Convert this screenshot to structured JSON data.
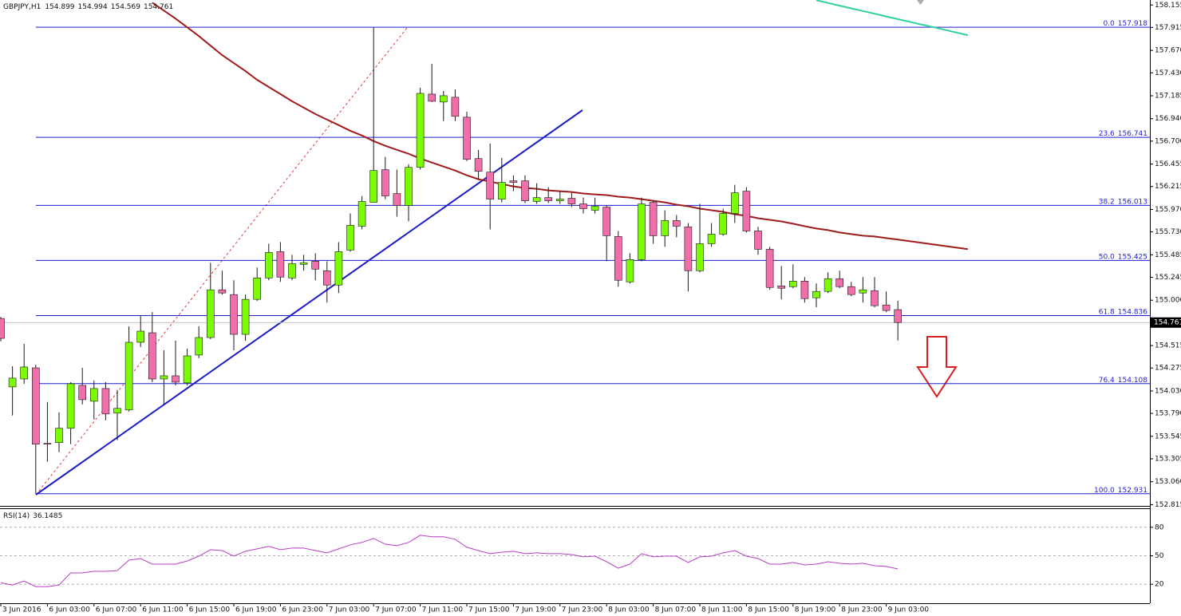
{
  "chart_data": [
    {
      "type": "candlestick",
      "title": "GBPJPY,H1",
      "categories": [
        "3 Jun 2016",
        null,
        null,
        null,
        "6 Jun 03:00",
        null,
        null,
        null,
        "6 Jun 07:00",
        null,
        null,
        null,
        "6 Jun 11:00",
        null,
        null,
        null,
        "6 Jun 15:00",
        null,
        null,
        null,
        "6 Jun 19:00",
        null,
        null,
        null,
        "6 Jun 23:00",
        null,
        null,
        null,
        "7 Jun 03:00",
        null,
        null,
        null,
        "7 Jun 07:00",
        null,
        null,
        null,
        "7 Jun 11:00",
        null,
        null,
        null,
        "7 Jun 15:00",
        null,
        null,
        null,
        "7 Jun 19:00",
        null,
        null,
        null,
        "7 Jun 23:00",
        null,
        null,
        null,
        "8 Jun 03:00",
        null,
        null,
        null,
        "8 Jun 07:00",
        null,
        null,
        null,
        "8 Jun 11:00",
        null,
        null,
        null,
        "8 Jun 15:00",
        null,
        null,
        null,
        "8 Jun 19:00",
        null,
        null,
        null,
        "8 Jun 23:00",
        null,
        null,
        null,
        "9 Jun 03:00",
        null,
        null,
        null,
        null,
        null,
        null,
        null
      ],
      "open": [
        154.805,
        154.073,
        154.158,
        154.277,
        153.47,
        153.478,
        153.631,
        154.09,
        153.92,
        154.056,
        153.793,
        153.827,
        154.55,
        154.652,
        154.158,
        154.192,
        154.116,
        154.414,
        154.601,
        155.111,
        155.06,
        154.635,
        155.009,
        155.238,
        155.519,
        155.238,
        155.383,
        155.417,
        155.315,
        155.162,
        155.536,
        155.791,
        156.046,
        156.395,
        156.14,
        156.012,
        156.42,
        157.203,
        157.118,
        157.169,
        156.956,
        156.514,
        156.369,
        156.08,
        156.276,
        156.276,
        156.055,
        156.097,
        156.063,
        156.089,
        156.029,
        155.961,
        155.995,
        155.681,
        155.196,
        155.434,
        156.046,
        155.689,
        155.851,
        155.783,
        155.315,
        155.604,
        155.706,
        155.927,
        156.165,
        155.74,
        155.544,
        155.153,
        155.145,
        155.204,
        155.026,
        155.094,
        155.23,
        155.145,
        155.077,
        155.102,
        154.949,
        154.899,
        null,
        null,
        null,
        null,
        null,
        null
      ],
      "high": [
        154.822,
        154.294,
        154.533,
        154.311,
        153.912,
        153.801,
        154.124,
        154.277,
        154.141,
        154.124,
        154.039,
        154.72,
        154.839,
        154.873,
        154.465,
        154.567,
        154.482,
        154.72,
        155.4,
        155.315,
        155.213,
        155.06,
        155.349,
        155.604,
        155.621,
        155.485,
        155.485,
        155.502,
        155.417,
        155.621,
        155.927,
        156.114,
        157.918,
        156.531,
        156.395,
        156.454,
        157.271,
        157.526,
        157.237,
        157.254,
        157.016,
        156.607,
        156.675,
        156.522,
        156.335,
        156.335,
        156.25,
        156.208,
        156.165,
        156.148,
        156.097,
        156.097,
        156.012,
        155.74,
        155.502,
        156.097,
        156.063,
        155.961,
        155.91,
        155.825,
        156.029,
        155.825,
        155.978,
        156.233,
        156.208,
        155.783,
        155.57,
        155.366,
        155.383,
        155.247,
        155.179,
        155.298,
        155.315,
        155.196,
        155.247,
        155.247,
        155.094,
        154.994,
        null,
        null,
        null,
        null,
        null,
        null
      ],
      "low": [
        154.56,
        153.767,
        154.107,
        152.931,
        153.274,
        153.376,
        153.461,
        153.886,
        153.725,
        153.716,
        153.504,
        153.81,
        154.499,
        154.124,
        153.886,
        154.09,
        154.09,
        154.38,
        154.584,
        155.06,
        154.465,
        154.567,
        154.992,
        155.213,
        155.196,
        155.213,
        155.315,
        155.213,
        154.975,
        155.077,
        155.519,
        155.757,
        156.046,
        156.08,
        155.893,
        155.842,
        156.395,
        157.118,
        156.914,
        156.914,
        156.488,
        156.293,
        155.757,
        156.046,
        156.165,
        156.038,
        156.029,
        156.038,
        156.029,
        155.995,
        155.927,
        155.927,
        155.417,
        155.145,
        155.179,
        155.417,
        155.604,
        155.57,
        155.672,
        155.094,
        155.298,
        155.57,
        155.689,
        155.825,
        155.723,
        155.485,
        155.111,
        155.009,
        155.128,
        154.975,
        154.924,
        155.077,
        155.128,
        155.043,
        154.975,
        154.924,
        154.873,
        154.569,
        null,
        null,
        null,
        null,
        null,
        null
      ],
      "close": [
        154.592,
        154.167,
        154.286,
        153.461,
        153.461,
        153.631,
        154.107,
        153.937,
        154.056,
        153.784,
        153.844,
        154.55,
        154.669,
        154.158,
        154.192,
        154.124,
        154.405,
        154.601,
        155.111,
        155.077,
        154.635,
        155.009,
        155.238,
        155.51,
        155.247,
        155.391,
        155.4,
        155.332,
        155.162,
        155.519,
        155.8,
        156.055,
        156.386,
        156.114,
        156.012,
        156.42,
        157.211,
        157.126,
        157.186,
        156.965,
        156.505,
        156.378,
        156.08,
        156.259,
        156.259,
        156.063,
        156.097,
        156.063,
        156.08,
        156.029,
        155.978,
        156.004,
        155.689,
        155.213,
        155.434,
        156.029,
        155.689,
        155.851,
        155.791,
        155.315,
        155.604,
        155.706,
        155.927,
        156.148,
        155.74,
        155.544,
        155.136,
        155.128,
        155.204,
        155.017,
        155.094,
        155.23,
        155.145,
        155.06,
        155.111,
        154.941,
        154.89,
        154.761,
        null,
        null,
        null,
        null,
        null,
        null
      ],
      "up_color": "#7cfc00",
      "down_color": "#f06eaa",
      "wick_color": "#1a1a1a",
      "lines": [
        {
          "color": "#a01c1c",
          "values": [
            null,
            null,
            null,
            null,
            null,
            null,
            null,
            null,
            null,
            null,
            null,
            null,
            null,
            158.18,
            158.095,
            158.01,
            157.917,
            157.823,
            157.721,
            157.619,
            157.534,
            157.449,
            157.356,
            157.279,
            157.203,
            157.126,
            157.058,
            156.99,
            156.93,
            156.871,
            156.811,
            156.76,
            156.701,
            156.65,
            156.607,
            156.565,
            156.514,
            156.471,
            156.429,
            156.386,
            156.335,
            156.293,
            156.267,
            156.242,
            156.216,
            156.199,
            156.191,
            156.174,
            156.165,
            156.157,
            156.14,
            156.131,
            156.123,
            156.106,
            156.097,
            156.08,
            156.063,
            156.046,
            156.021,
            156.004,
            155.978,
            155.961,
            155.944,
            155.919,
            155.902,
            155.876,
            155.859,
            155.842,
            155.817,
            155.791,
            155.766,
            155.749,
            155.723,
            155.706,
            155.689,
            155.681,
            155.664,
            155.647,
            155.631,
            155.613,
            155.596,
            155.579,
            155.562,
            155.545
          ]
        },
        {
          "color": "#30d0a0",
          "values": [
            null,
            null,
            null,
            null,
            null,
            null,
            null,
            null,
            null,
            null,
            null,
            null,
            null,
            null,
            null,
            null,
            null,
            null,
            null,
            null,
            null,
            null,
            null,
            null,
            null,
            null,
            null,
            null,
            null,
            null,
            null,
            null,
            null,
            null,
            null,
            null,
            null,
            null,
            null,
            null,
            null,
            null,
            null,
            null,
            null,
            null,
            null,
            null,
            null,
            null,
            null,
            null,
            null,
            null,
            null,
            null,
            null,
            null,
            null,
            null,
            null,
            null,
            null,
            null,
            null,
            null,
            null,
            null,
            null,
            null,
            158.206,
            158.177,
            158.148,
            158.119,
            158.091,
            158.062,
            158.033,
            158.004,
            157.976,
            157.947,
            157.919,
            157.89,
            157.861,
            157.832
          ]
        }
      ],
      "fibonacci": {
        "color": "#1e1ed2",
        "levels": [
          {
            "ratio": "0.0",
            "value": 157.918
          },
          {
            "ratio": 23.6,
            "value": 156.741
          },
          {
            "ratio": 38.2,
            "value": 156.013
          },
          {
            "ratio": "50.0",
            "value": 155.425
          },
          {
            "ratio": 61.8,
            "value": 154.836
          },
          {
            "ratio": 76.4,
            "value": 154.108
          },
          {
            "ratio": "100.0",
            "value": 152.931
          }
        ]
      },
      "ylim": [
        152.81,
        158.2
      ],
      "yticks": [
        158.155,
        157.915,
        {
          "value": 157.67,
          "label": "157.670"
        },
        {
          "value": 157.43,
          "label": "157.430"
        },
        157.185,
        {
          "value": 156.94,
          "label": "156.940"
        },
        {
          "value": 156.7,
          "label": "156.700"
        },
        156.455,
        156.215,
        {
          "value": 155.97,
          "label": "155.970"
        },
        {
          "value": 155.73,
          "label": "155.730"
        },
        155.485,
        155.245,
        {
          "value": 155,
          "label": "155.000"
        },
        154.515,
        154.275,
        {
          "value": 154.03,
          "label": "154.030"
        },
        {
          "value": 153.79,
          "label": "153.790"
        },
        153.545,
        153.305,
        {
          "value": 153.06,
          "label": "153.060"
        },
        152.815
      ]
    },
    {
      "type": "line",
      "title": "RSI(14)",
      "color": "#b83fc6",
      "values": [
        21.7,
        19.2,
        23.4,
        17.5,
        17.5,
        19.2,
        31.9,
        31.9,
        33.6,
        33.6,
        34.4,
        45.4,
        47.1,
        41.2,
        41.2,
        41.2,
        44.5,
        49.6,
        56.4,
        55.5,
        49.6,
        54.7,
        57.2,
        59.8,
        56.4,
        58.1,
        58.1,
        55.5,
        53.0,
        57.2,
        61.5,
        64.0,
        68.2,
        62.3,
        60.6,
        64.0,
        71.6,
        69.9,
        69.9,
        67.4,
        58.9,
        55.5,
        52.2,
        53.8,
        54.7,
        52.2,
        53.0,
        52.2,
        52.2,
        51.3,
        48.8,
        49.6,
        43.7,
        36.9,
        41.2,
        52.2,
        48.8,
        49.6,
        49.6,
        42.9,
        48.8,
        49.6,
        53.0,
        55.5,
        49.6,
        47.1,
        41.2,
        41.2,
        42.9,
        40.3,
        41.2,
        43.7,
        42.1,
        41.2,
        42.1,
        39.5,
        38.7,
        36.1485,
        null,
        null,
        null,
        null,
        null,
        null
      ],
      "ylim": [
        0,
        100
      ],
      "yticks": [
        20,
        50,
        80
      ],
      "grid": true
    }
  ]
}
